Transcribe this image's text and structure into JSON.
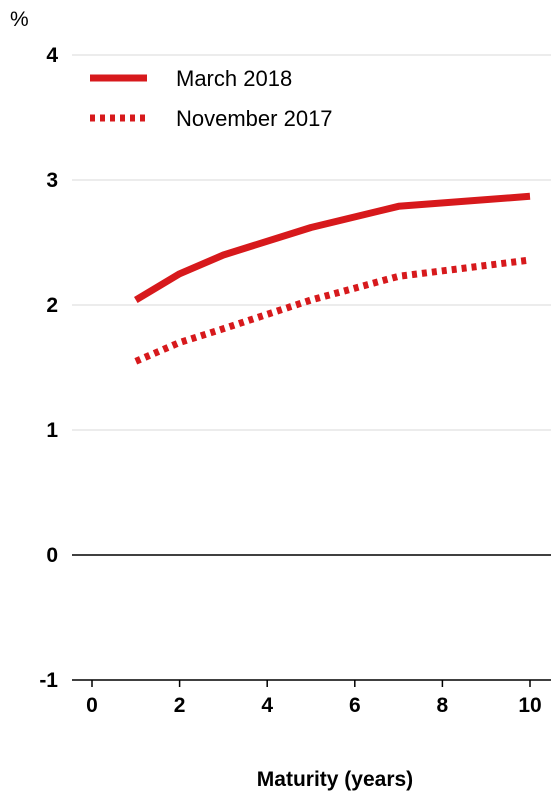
{
  "chart_data": {
    "type": "line",
    "title": "",
    "unit_label": "%",
    "xlabel": "Maturity (years)",
    "ylabel": "",
    "xlim": [
      0,
      10
    ],
    "ylim": [
      -1,
      4
    ],
    "x_ticks": [
      0,
      2,
      4,
      6,
      8,
      10
    ],
    "y_ticks": [
      -1,
      0,
      1,
      2,
      3,
      4
    ],
    "grid": true,
    "legend_position": "top-left",
    "series": [
      {
        "name": "March 2018",
        "style": "solid",
        "color": "#d7191c",
        "x": [
          1,
          2,
          3,
          5,
          7,
          10
        ],
        "y": [
          2.04,
          2.25,
          2.4,
          2.62,
          2.79,
          2.87
        ]
      },
      {
        "name": "November 2017",
        "style": "dotted",
        "color": "#d7191c",
        "x": [
          1,
          2,
          3,
          5,
          7,
          10
        ],
        "y": [
          1.55,
          1.7,
          1.81,
          2.04,
          2.23,
          2.36
        ]
      }
    ]
  }
}
